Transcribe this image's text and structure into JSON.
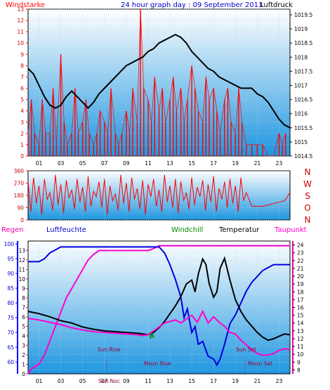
{
  "colors": {
    "wind": "#ff0000",
    "pressure": "#000000",
    "humidity": "#0000dd",
    "temperature": "#000000",
    "dewpoint": "#ff00cc",
    "windchill": "#008800",
    "rain_axis": "#ee00aa",
    "hum_axis": "#0000ff",
    "header_text": "#0000cc",
    "event_text": "#990033",
    "bg_top": "#ffffff",
    "bg_bottom": "#1e96e0",
    "frame": "#000000"
  },
  "chart_data": [
    {
      "type": "bar",
      "title": "24 hour graph day : 09 September 2013",
      "left_label": "Windstarke",
      "right_label": "Luftdruck",
      "xticks": [
        "01",
        "03",
        "05",
        "07",
        "09",
        "11",
        "13",
        "15",
        "17",
        "19",
        "21",
        "23"
      ],
      "y_left_ticks": [
        "0",
        "1",
        "2",
        "3",
        "4",
        "5",
        "6",
        "7",
        "8",
        "9",
        "10",
        "11",
        "12",
        "13"
      ],
      "y_right_ticks": [
        "1014.5",
        "1015",
        "1015.5",
        "1016",
        "1016.5",
        "1017",
        "1017.5",
        "1018",
        "1018.5",
        "1019",
        "1019.5"
      ],
      "ylim_left": [
        0,
        13
      ],
      "ylim_right": [
        1014.5,
        1019.7
      ],
      "series": [
        {
          "name": "Windstarke",
          "hours": [
            0,
            0.3,
            0.6,
            1,
            1.3,
            1.6,
            2,
            2.3,
            2.6,
            3,
            3.3,
            3.6,
            4,
            4.3,
            4.6,
            5,
            5.3,
            5.6,
            6,
            6.3,
            6.6,
            7,
            7.3,
            7.6,
            8,
            8.3,
            8.6,
            9,
            9.3,
            9.6,
            10,
            10.3,
            10.6,
            11,
            11.3,
            11.6,
            12,
            12.3,
            12.6,
            13,
            13.3,
            13.6,
            14,
            14.3,
            14.6,
            15,
            15.3,
            15.6,
            16,
            16.3,
            16.6,
            17,
            17.3,
            17.6,
            18,
            18.3,
            18.6,
            19,
            19.3,
            19.6,
            20,
            20.5,
            21,
            21.5,
            22,
            22.5,
            23,
            23.3,
            23.6
          ],
          "values": [
            2,
            5,
            2,
            1,
            5,
            2,
            2,
            6,
            1,
            9,
            3,
            1,
            2,
            6,
            2,
            3,
            5,
            2,
            1,
            2,
            4,
            3,
            2,
            6,
            2,
            1,
            2,
            4,
            2,
            6,
            3,
            13,
            6,
            5,
            3,
            7,
            4,
            6,
            3,
            5,
            7,
            4,
            6,
            3,
            5,
            8,
            6,
            4,
            3,
            7,
            5,
            6,
            4,
            2,
            5,
            6,
            3,
            2,
            6,
            3,
            1,
            1,
            1,
            1,
            0,
            0,
            2,
            1,
            2
          ]
        },
        {
          "name": "Luftdruck",
          "hours": [
            0,
            0.5,
            1,
            1.5,
            2,
            2.5,
            3,
            3.5,
            4,
            4.5,
            5,
            5.5,
            6,
            6.5,
            7,
            7.5,
            8,
            8.5,
            9,
            9.5,
            10,
            10.5,
            11,
            11.5,
            12,
            12.5,
            13,
            13.5,
            14,
            14.5,
            15,
            15.5,
            16,
            16.5,
            17,
            17.5,
            18,
            18.5,
            19,
            19.5,
            20,
            20.5,
            21,
            21.5,
            22,
            22.5,
            23,
            23.5,
            24
          ],
          "values": [
            1017.6,
            1017.4,
            1017.0,
            1016.6,
            1016.3,
            1016.2,
            1016.3,
            1016.6,
            1016.8,
            1016.6,
            1016.4,
            1016.2,
            1016.4,
            1016.7,
            1016.9,
            1017.1,
            1017.3,
            1017.5,
            1017.7,
            1017.8,
            1017.9,
            1018.0,
            1018.2,
            1018.3,
            1018.5,
            1018.6,
            1018.7,
            1018.8,
            1018.7,
            1018.5,
            1018.2,
            1018.0,
            1017.8,
            1017.6,
            1017.5,
            1017.3,
            1017.2,
            1017.1,
            1017.0,
            1016.9,
            1016.9,
            1016.9,
            1016.7,
            1016.6,
            1016.4,
            1016.1,
            1015.8,
            1015.6,
            1015.5
          ]
        }
      ]
    },
    {
      "type": "line",
      "y_left_ticks": [
        "0",
        "90",
        "180",
        "270",
        "360"
      ],
      "ylim": [
        0,
        360
      ],
      "compass": [
        "N",
        "W",
        "S",
        "O",
        "N"
      ],
      "series": [
        {
          "name": "Windrichtung",
          "hours": [
            0,
            0.25,
            0.5,
            0.75,
            1,
            1.25,
            1.5,
            1.75,
            2,
            2.25,
            2.5,
            2.75,
            3,
            3.25,
            3.5,
            3.75,
            4,
            4.25,
            4.5,
            4.75,
            5,
            5.25,
            5.5,
            5.75,
            6,
            6.25,
            6.5,
            6.75,
            7,
            7.25,
            7.5,
            7.75,
            8,
            8.25,
            8.5,
            8.75,
            9,
            9.25,
            9.5,
            9.75,
            10,
            10.25,
            10.5,
            10.75,
            11,
            11.25,
            11.5,
            11.75,
            12,
            12.25,
            12.5,
            12.75,
            13,
            13.25,
            13.5,
            13.75,
            14,
            14.25,
            14.5,
            14.75,
            15,
            15.25,
            15.5,
            15.75,
            16,
            16.25,
            16.5,
            16.75,
            17,
            17.25,
            17.5,
            17.75,
            18,
            18.25,
            18.5,
            18.75,
            19,
            19.25,
            19.5,
            19.75,
            20,
            20.5,
            21,
            21.5,
            22,
            22.5,
            23,
            23.5,
            24
          ],
          "values": [
            280,
            60,
            310,
            120,
            250,
            40,
            300,
            150,
            200,
            70,
            330,
            110,
            260,
            50,
            290,
            160,
            220,
            80,
            300,
            130,
            240,
            60,
            320,
            100,
            210,
            170,
            280,
            90,
            300,
            40,
            250,
            140,
            190,
            70,
            330,
            120,
            270,
            60,
            310,
            150,
            230,
            80,
            290,
            40,
            260,
            170,
            300,
            100,
            220,
            60,
            330,
            130,
            250,
            90,
            300,
            50,
            280,
            140,
            200,
            80,
            310,
            110,
            240,
            170,
            290,
            70,
            260,
            130,
            320,
            60,
            230,
            150,
            280,
            90,
            300,
            120,
            250,
            60,
            310,
            140,
            200,
            100,
            100,
            100,
            110,
            120,
            130,
            140,
            200
          ]
        }
      ]
    },
    {
      "type": "line",
      "left_label_1": "Regen",
      "left_label_2": "Luftfeuchte",
      "legend_windchill": "Windchill",
      "legend_temperature": "Temperatur",
      "legend_dewpoint": "Taupunkt",
      "y_hum_ticks": [
        "60",
        "65",
        "70",
        "75",
        "80",
        "85",
        "90",
        "95",
        "100"
      ],
      "y_temp_ticks": [
        "8",
        "9",
        "10",
        "11",
        "12",
        "13",
        "14",
        "15",
        "16",
        "17",
        "18",
        "19",
        "20",
        "21",
        "22",
        "23",
        "24"
      ],
      "y_rain_ticks": [
        "0",
        "1",
        "2",
        "3",
        "4",
        "5",
        "6",
        "7",
        "8",
        "9",
        "10",
        "11",
        "12",
        "13"
      ],
      "xticks": [
        "01",
        "03",
        "05",
        "07",
        "09",
        "11",
        "13",
        "15",
        "17",
        "19",
        "21",
        "23"
      ],
      "ylim_hum": [
        56,
        101
      ],
      "ylim_temp": [
        7.5,
        24.5
      ],
      "ylim_rain": [
        0,
        14
      ],
      "events": {
        "sun_rise": "Sun Rise",
        "moon_rise": "Moon Rise",
        "sun_set": "Sun Set",
        "moon_set": "Moon Set",
        "sun_noon": "Sun Noc",
        "sun_noon_hour": 7.2,
        "moon_set_hour": 19.9
      },
      "series": [
        {
          "name": "Luftfeuchte",
          "hours": [
            0,
            0.5,
            1,
            1.5,
            2,
            2.5,
            3,
            4,
            5,
            6,
            7,
            8,
            9,
            10,
            11,
            11.5,
            12,
            12.5,
            13,
            13.5,
            14,
            14.3,
            14.6,
            15,
            15.3,
            15.6,
            16,
            16.5,
            17,
            17.3,
            17.6,
            18,
            18.5,
            19,
            19.5,
            20,
            20.5,
            21,
            21.5,
            22,
            22.5,
            23,
            23.5,
            24
          ],
          "values": [
            94,
            94,
            94,
            95,
            97,
            98,
            99,
            99,
            99,
            99,
            99,
            99,
            99,
            99,
            99,
            99,
            99,
            97,
            93,
            88,
            82,
            75,
            78,
            70,
            72,
            66,
            67,
            62,
            61,
            59,
            61,
            66,
            73,
            76,
            80,
            84,
            87,
            89,
            91,
            92,
            93,
            93,
            93,
            93
          ]
        },
        {
          "name": "Temperatur",
          "hours": [
            0,
            1,
            2,
            3,
            4,
            5,
            6,
            7,
            8,
            9,
            10,
            10.5,
            11,
            11.5,
            12,
            12.5,
            13,
            13.5,
            14,
            14.5,
            15,
            15.3,
            15.6,
            16,
            16.3,
            16.6,
            17,
            17.3,
            17.6,
            18,
            18.5,
            19,
            19.5,
            20,
            20.5,
            21,
            21.5,
            22,
            22.5,
            23,
            23.5,
            24
          ],
          "values": [
            15.5,
            15.2,
            14.8,
            14.3,
            14.0,
            13.5,
            13.2,
            13.0,
            12.9,
            12.8,
            12.7,
            12.6,
            12.5,
            12.8,
            13.4,
            14.2,
            15.2,
            16.2,
            17.4,
            19.0,
            19.5,
            18.0,
            20.3,
            22.2,
            21.5,
            19.0,
            17.3,
            18.0,
            21.0,
            22.3,
            19.5,
            17.0,
            15.5,
            14.4,
            13.6,
            12.8,
            12.2,
            11.8,
            12.0,
            12.3,
            12.6,
            12.5
          ]
        },
        {
          "name": "Taupunkt",
          "hours": [
            0,
            1,
            2,
            3,
            4,
            5,
            6,
            7,
            8,
            9,
            10,
            10.5,
            11,
            11.5,
            12,
            12.5,
            13,
            13.5,
            14,
            14.5,
            15,
            15.5,
            16,
            16.5,
            17,
            17.5,
            18,
            18.5,
            19,
            19.5,
            20,
            20.5,
            21,
            21.5,
            22,
            22.5,
            23,
            23.5,
            24
          ],
          "values": [
            14.6,
            14.4,
            14.1,
            13.8,
            13.4,
            13.1,
            12.9,
            12.8,
            12.7,
            12.6,
            12.5,
            12.4,
            12.5,
            13.0,
            13.5,
            14.0,
            14.2,
            14.4,
            14.0,
            14.5,
            15.0,
            14.1,
            15.5,
            14.0,
            14.8,
            14.1,
            13.6,
            12.8,
            12.6,
            11.8,
            11.2,
            10.6,
            10.1,
            9.9,
            9.9,
            10.1,
            10.5,
            10.7,
            10.6
          ]
        },
        {
          "name": "Regen",
          "hours": [
            0,
            0.2,
            0.5,
            1,
            1.5,
            2,
            2.5,
            3,
            3.5,
            4,
            4.5,
            5,
            5.5,
            6,
            6.5,
            7,
            7.5,
            8,
            9,
            10,
            11,
            11.5,
            12,
            13,
            14,
            15,
            16,
            17,
            18,
            19,
            20,
            21,
            22,
            23,
            24
          ],
          "values": [
            0,
            0.4,
            0.7,
            1,
            2,
            3.5,
            5,
            6.5,
            8,
            9,
            10,
            11,
            12,
            12.6,
            13,
            13,
            13,
            13,
            13,
            13,
            13,
            13.2,
            13.5,
            13.5,
            13.5,
            13.5,
            13.5,
            13.5,
            13.5,
            13.5,
            13.5,
            13.5,
            13.5,
            13.5,
            13.5
          ]
        },
        {
          "name": "Windchill",
          "hours": [
            11.2,
            11.35,
            11.5
          ],
          "values": [
            12.0,
            12.7,
            12.1
          ]
        }
      ]
    }
  ]
}
